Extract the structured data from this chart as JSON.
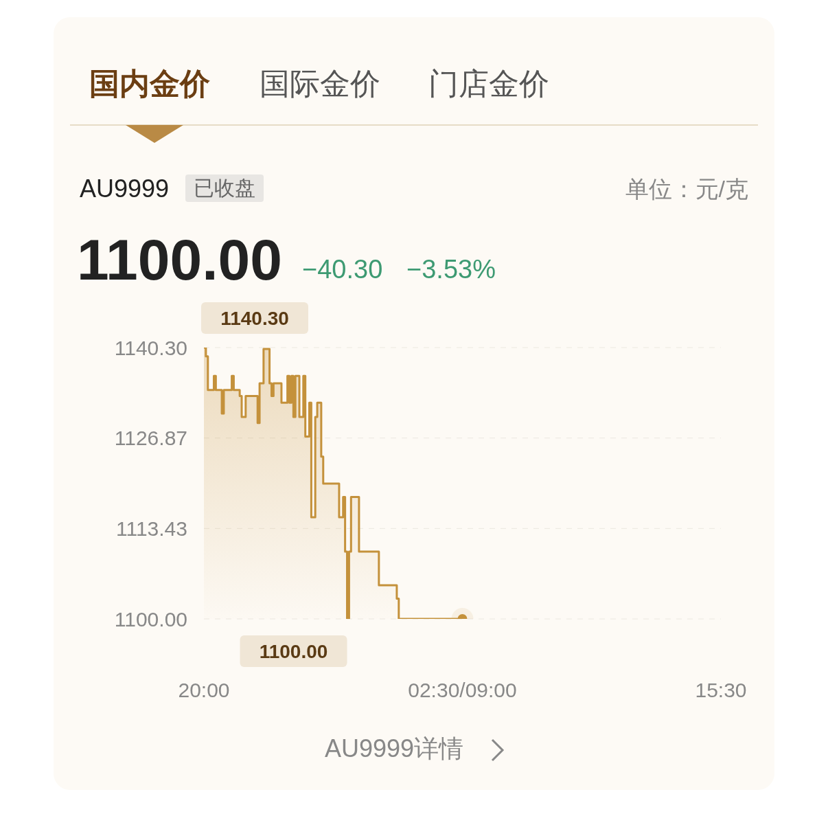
{
  "chart_data": {
    "type": "step",
    "title": "AU9999",
    "categories": [
      "20:00",
      null,
      null,
      null,
      null,
      null,
      null,
      null,
      null,
      null,
      null,
      null,
      null,
      null,
      null,
      null,
      null,
      null,
      null,
      null,
      null,
      null,
      null,
      null,
      null,
      null,
      null,
      null,
      null,
      null,
      null,
      null,
      null,
      null,
      null,
      null,
      null,
      null,
      null,
      null,
      null,
      null,
      null,
      null,
      null,
      null,
      null,
      null,
      null,
      null,
      null,
      null,
      null,
      null,
      null,
      null,
      null,
      null,
      null,
      null,
      null,
      null,
      null,
      null,
      null,
      null,
      null,
      null,
      null,
      null,
      null,
      null,
      null,
      null,
      null,
      null,
      null,
      null,
      null,
      null,
      null,
      null,
      null,
      null,
      null,
      null,
      null,
      null,
      null,
      null,
      null,
      null,
      null,
      null,
      null,
      null,
      null,
      null,
      null,
      null,
      null,
      null,
      null,
      null,
      null,
      null,
      null,
      null,
      null,
      null,
      null,
      null,
      null,
      null,
      null,
      null,
      null,
      null,
      null,
      null,
      null,
      null,
      null,
      null,
      null,
      null,
      null,
      null,
      null,
      null,
      "02:30/09:00",
      null,
      null,
      null,
      null,
      null,
      null,
      null,
      null,
      null,
      null,
      null,
      null,
      null,
      null,
      null,
      null,
      null,
      null,
      null,
      null,
      null,
      null,
      null,
      null,
      null,
      null,
      null,
      null,
      null,
      null,
      null,
      null,
      null,
      null,
      null,
      null,
      null,
      null,
      null,
      null,
      null,
      null,
      null,
      null,
      null,
      null,
      null,
      null,
      null,
      null,
      null,
      null,
      null,
      null,
      null,
      null,
      null,
      null,
      null,
      null,
      null,
      null,
      null,
      null,
      null,
      null,
      null,
      null,
      null,
      null,
      null,
      null,
      null,
      null,
      null,
      null,
      null,
      null,
      null,
      null,
      null,
      null,
      null,
      null,
      null,
      null,
      null,
      null,
      null,
      null,
      null,
      null,
      null,
      null,
      null,
      null,
      null,
      null,
      null,
      null,
      null,
      null,
      null,
      null,
      null,
      null,
      null,
      null,
      null,
      null,
      null,
      null,
      null,
      null,
      null,
      null,
      null,
      null,
      null,
      null,
      null,
      null,
      null,
      null,
      null,
      null,
      null,
      null,
      null,
      "15:30"
    ],
    "series": [
      {
        "color": "#c4913b",
        "values": [
          1140.3,
          1139.0,
          1134.0,
          1134.0,
          1134.0,
          1136.1,
          1134.0,
          1134.0,
          1134.0,
          1130.5,
          1134.0,
          1134.0,
          1134.0,
          1134.0,
          1136.1,
          1134.0,
          1134.0,
          1134.0,
          1133.1,
          1130.0,
          1130.0,
          1133.1,
          1133.1,
          1133.1,
          1133.1,
          1133.1,
          1133.1,
          1129.1,
          1135.0,
          1135.0,
          1140.1,
          1140.1,
          1140.1,
          1135.0,
          1133.1,
          1135.0,
          1135.0,
          1135.0,
          1135.0,
          1132.1,
          1132.1,
          1132.1,
          1136.1,
          1132.1,
          1136.1,
          1130.0,
          1136.1,
          1136.1,
          1130.0,
          1130.0,
          1136.1,
          1127.1,
          1127.1,
          1132.1,
          1115.1,
          1115.1,
          1130.0,
          1132.1,
          1132.1,
          1124.1,
          1120.1,
          1120.1,
          1120.1,
          1120.1,
          1120.1,
          1120.1,
          1120.1,
          1120.1,
          1115.1,
          1115.1,
          1118.1,
          1110.0,
          1100.0,
          1110.0,
          1118.1,
          1118.1,
          1118.1,
          1118.1,
          1110.0,
          1110.0,
          1110.0,
          1110.0,
          1110.0,
          1110.0,
          1110.0,
          1110.0,
          1110.0,
          1110.0,
          1105.0,
          1105.0,
          1105.0,
          1105.0,
          1105.0,
          1105.0,
          1105.0,
          1105.0,
          1105.0,
          1103.0,
          1100.0,
          1100.0,
          1100.0,
          1100.0,
          1100.0,
          1100.0,
          1100.0,
          1100.0,
          1100.0,
          1100.0,
          1100.0,
          1100.0,
          1100.0,
          1100.0,
          1100.0,
          1100.0,
          1100.0,
          1100.0,
          1100.0,
          1100.0,
          1100.0,
          1100.0,
          1100.0,
          1100.0,
          1100.0,
          1100.0,
          1100.0,
          1100.0,
          1100.0,
          1100.0,
          1100.0,
          1100.0,
          1100.0,
          null,
          null,
          null,
          null,
          null,
          null,
          null,
          null,
          null,
          null,
          null,
          null,
          null,
          null,
          null,
          null,
          null,
          null,
          null,
          null,
          null,
          null,
          null,
          null,
          null,
          null,
          null,
          null,
          null,
          null,
          null,
          null,
          null,
          null,
          null,
          null,
          null,
          null,
          null,
          null,
          null,
          null,
          null,
          null,
          null,
          null,
          null,
          null,
          null,
          null,
          null,
          null,
          null,
          null,
          null,
          null,
          null,
          null,
          null,
          null,
          null,
          null,
          null,
          null,
          null,
          null,
          null,
          null,
          null,
          null,
          null,
          null,
          null,
          null,
          null,
          null,
          null,
          null,
          null,
          null,
          null,
          null,
          null,
          null,
          null,
          null,
          null,
          null,
          null,
          null,
          null,
          null,
          null,
          null,
          null,
          null,
          null,
          null,
          null,
          null,
          null,
          null,
          null,
          null,
          null,
          null,
          null,
          null,
          null,
          null,
          null,
          null,
          null,
          null,
          null,
          null,
          null,
          null,
          null,
          null,
          null,
          null,
          null,
          null,
          null,
          null,
          null,
          null,
          null,
          null
        ]
      },
      {
        "type": "scatter",
        "color": "#c4913b",
        "x": [
          "02:30/09:00"
        ],
        "values": [
          1100.0
        ]
      }
    ],
    "ylim": [
      1100,
      1140.3
    ],
    "yticks": [
      {
        "value": 1100,
        "label": "1100.00"
      },
      {
        "value": 1113.43,
        "label": "1113.43"
      },
      {
        "value": 1126.87,
        "label": "1126.87"
      },
      {
        "value": 1140.3,
        "label": "1140.30"
      }
    ],
    "grid": "y",
    "annotations": [
      "国内金价",
      "国际金价",
      "门店金价",
      "已收盘",
      "1100.00",
      "−40.30",
      "−3.53%",
      "AU9999详情",
      "单位：元/克",
      "1140.30",
      "1100.00"
    ]
  }
}
